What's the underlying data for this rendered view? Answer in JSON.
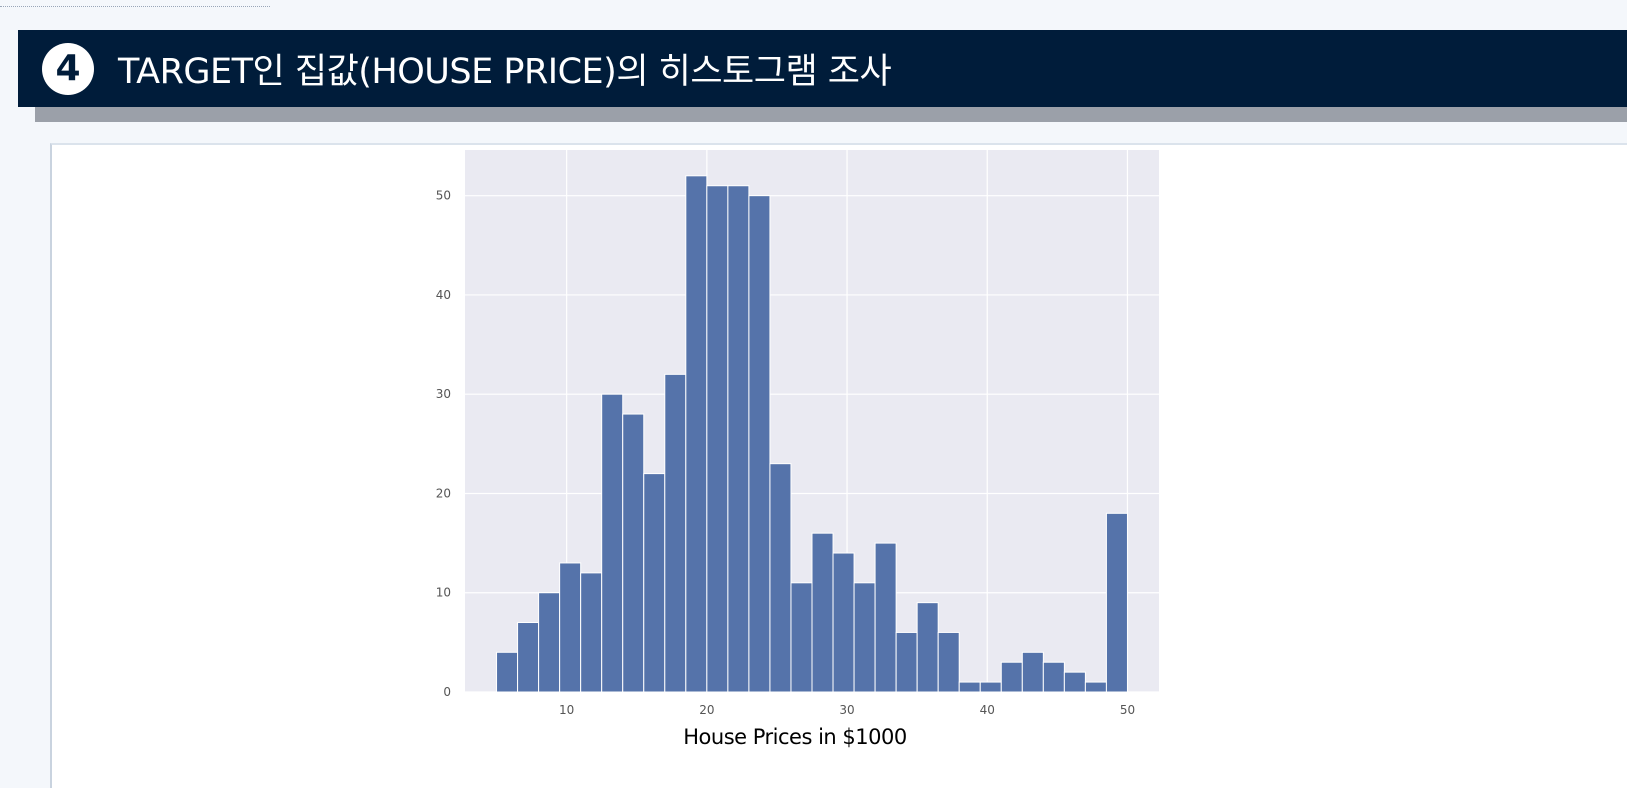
{
  "header": {
    "step_number": "4",
    "title": "TARGET인 집값(HOUSE PRICE)의 히스토그램 조사"
  },
  "colors": {
    "header_bg": "#001c3a",
    "bar_fill": "#5573aa",
    "plot_bg": "#eaeaf2"
  },
  "chart_data": {
    "type": "bar",
    "subtype": "histogram",
    "xlabel": "House Prices in $1000",
    "ylabel": "",
    "xlim": [
      2.75,
      52.25
    ],
    "ylim": [
      0,
      54.6
    ],
    "xticks": [
      10,
      20,
      30,
      40,
      50
    ],
    "yticks": [
      0,
      10,
      20,
      30,
      40,
      50
    ],
    "grid": true,
    "bin_edges": [
      5.0,
      6.5,
      8.0,
      9.5,
      11.0,
      12.5,
      14.0,
      15.5,
      17.0,
      18.5,
      20.0,
      21.5,
      23.0,
      24.5,
      26.0,
      27.5,
      29.0,
      30.5,
      32.0,
      33.5,
      35.0,
      36.5,
      38.0,
      39.5,
      41.0,
      42.5,
      44.0,
      45.5,
      47.0,
      48.5,
      50.0
    ],
    "values": [
      4,
      7,
      10,
      13,
      12,
      30,
      28,
      22,
      32,
      52,
      51,
      51,
      50,
      23,
      11,
      16,
      14,
      11,
      15,
      6,
      9,
      6,
      1,
      1,
      3,
      4,
      3,
      2,
      1,
      18
    ]
  }
}
